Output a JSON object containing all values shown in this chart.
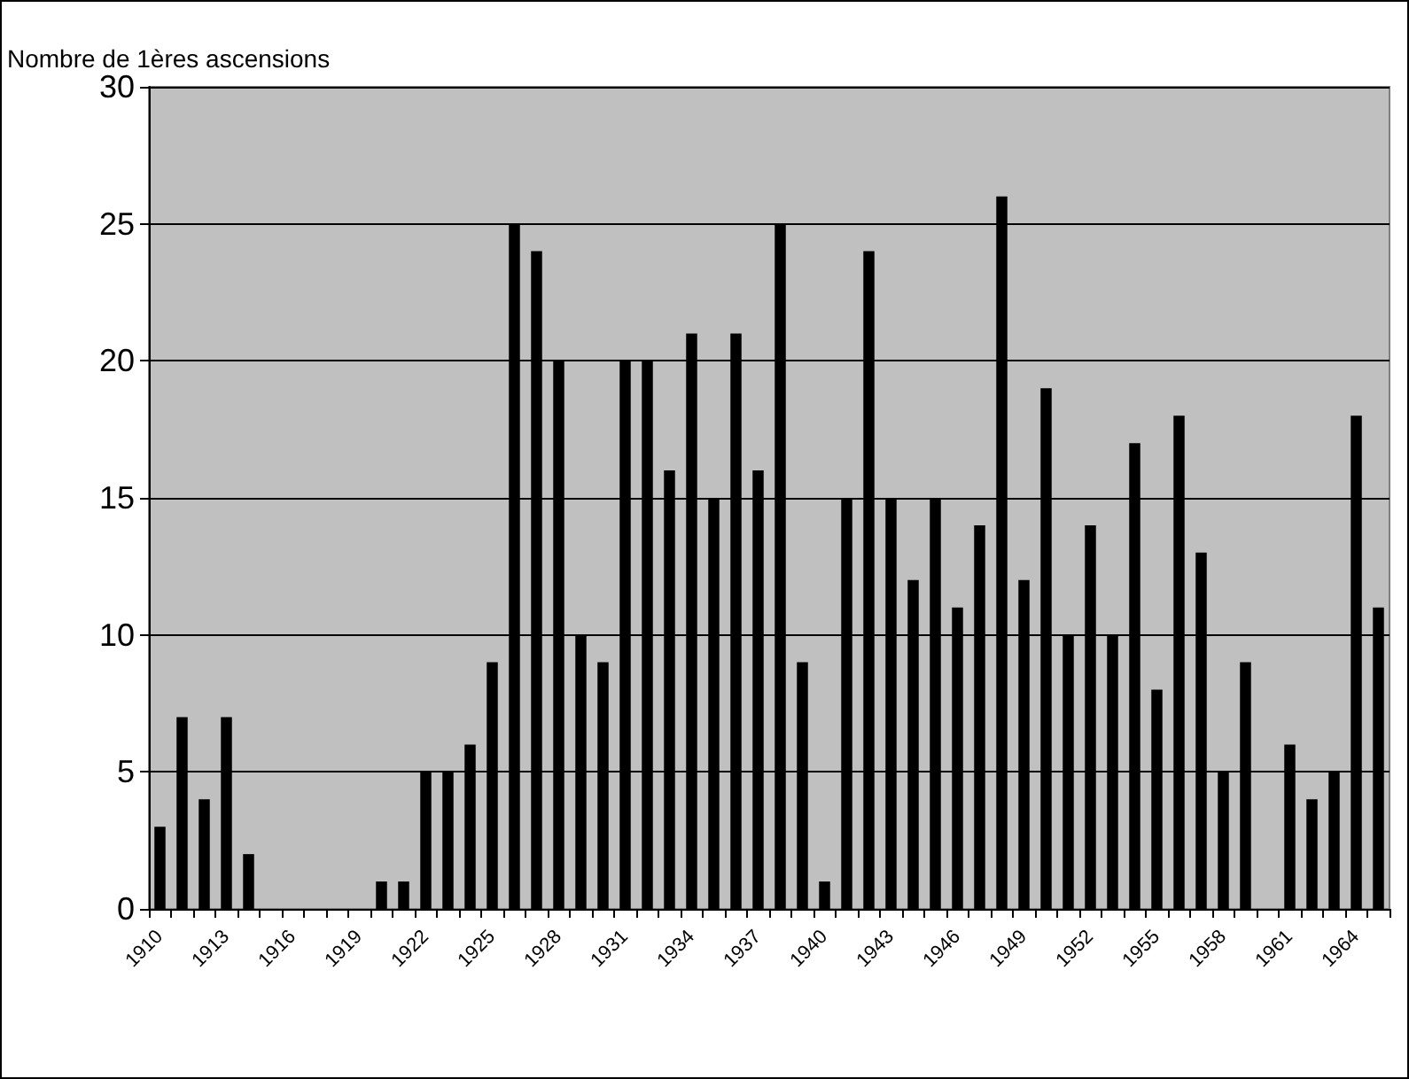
{
  "chart_data": {
    "type": "bar",
    "ylabel": "Nombre de 1ères ascensions",
    "categories": [
      "1910",
      null,
      null,
      "1913",
      null,
      null,
      "1916",
      null,
      null,
      "1919",
      null,
      null,
      "1922",
      null,
      null,
      "1925",
      null,
      null,
      "1928",
      null,
      null,
      "1931",
      null,
      null,
      "1934",
      null,
      null,
      "1937",
      null,
      null,
      "1940",
      null,
      null,
      "1943",
      null,
      null,
      "1946",
      null,
      null,
      "1949",
      null,
      null,
      "1952",
      null,
      null,
      "1955",
      null,
      null,
      "1958",
      null,
      null,
      "1961",
      null,
      null,
      "1964",
      null
    ],
    "values": [
      3,
      7,
      4,
      7,
      2,
      0,
      0,
      0,
      0,
      0,
      1,
      1,
      5,
      5,
      6,
      9,
      25,
      24,
      20,
      10,
      9,
      20,
      20,
      16,
      21,
      15,
      21,
      16,
      25,
      9,
      1,
      15,
      24,
      15,
      12,
      15,
      11,
      14,
      26,
      12,
      19,
      10,
      14,
      10,
      17,
      8,
      18,
      13,
      5,
      9,
      0,
      6,
      4,
      5,
      18,
      11
    ],
    "color": "#000000",
    "ylim": [
      0,
      30
    ],
    "yticks": [
      0,
      5,
      10,
      15,
      20,
      25,
      30
    ],
    "grid": "y"
  }
}
